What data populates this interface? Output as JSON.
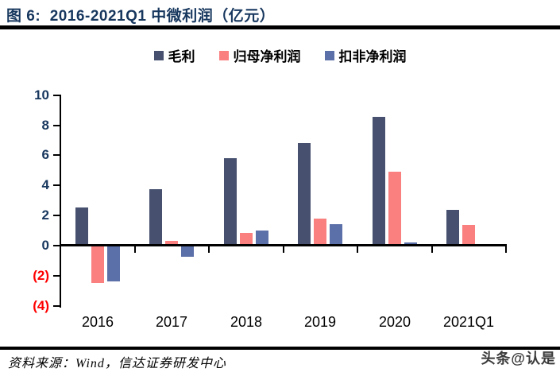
{
  "figure": {
    "title": "图 6:  2016-2021Q1 中微利润（亿元）",
    "source": "资料来源：Wind，信达证券研发中心",
    "watermark": "头条@认是"
  },
  "colors": {
    "title_navy": "#17375E",
    "axis_label_navy": "#17375E",
    "negative_label_red": "#FF0000",
    "axis_line_black": "#000000",
    "gross_profit_bar": "#47516F",
    "attributable_net_profit_bar": "#FA8080",
    "deducted_net_profit_bar": "#5B6FA8"
  },
  "chart_data": {
    "type": "bar",
    "title": "图 6:  2016-2021Q1 中微利润（亿元）",
    "unit": "亿元",
    "categories": [
      "2016",
      "2017",
      "2018",
      "2019",
      "2020",
      "2021Q1"
    ],
    "series": [
      {
        "key": "gross-profit",
        "name": "毛利",
        "color": "#47516F",
        "values": [
          2.55,
          3.75,
          5.8,
          6.8,
          8.55,
          2.4
        ]
      },
      {
        "key": "attributable-net-profit",
        "name": "归母净利润",
        "color": "#FA8080",
        "values": [
          -2.5,
          0.3,
          0.85,
          1.8,
          4.9,
          1.35
        ]
      },
      {
        "key": "deducted-net-profit",
        "name": "扣非净利润",
        "color": "#5B6FA8",
        "values": [
          -2.4,
          -0.75,
          1.0,
          1.45,
          0.2,
          0.1
        ]
      }
    ],
    "xlabel": "",
    "ylabel": "",
    "ylim": [
      -4,
      10
    ],
    "yticks": [
      10,
      8,
      6,
      4,
      2,
      0,
      -2,
      -4
    ],
    "negative_tick_format": "parentheses_red",
    "legend_position": "top-center",
    "grid": false
  }
}
